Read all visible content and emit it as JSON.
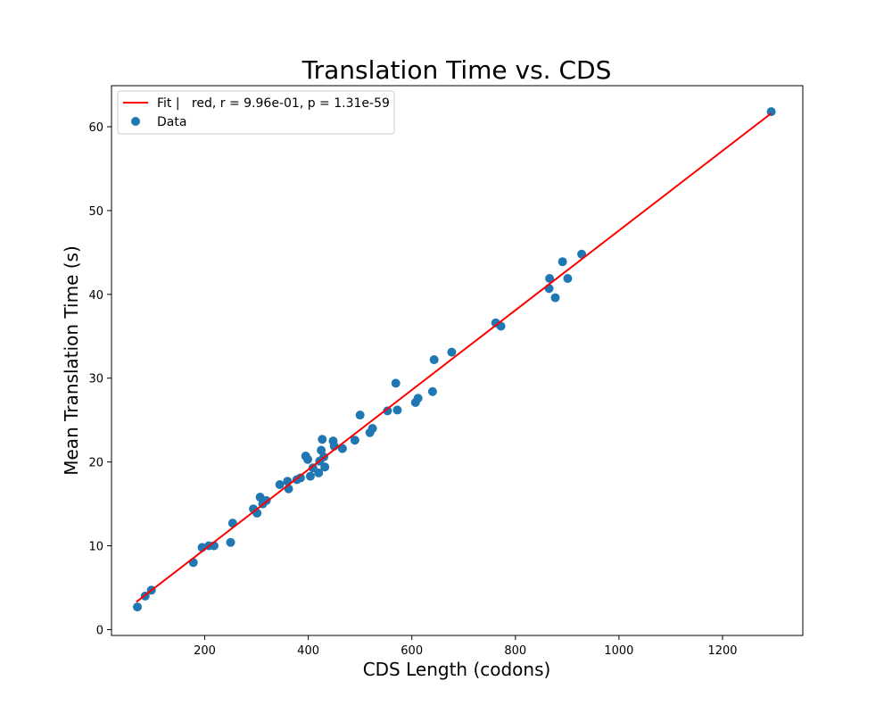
{
  "chart_data": {
    "type": "scatter",
    "title": "Translation Time vs. CDS",
    "xlabel": "CDS Length (codons)",
    "ylabel": "Mean Translation Time (s)",
    "xlim": [
      20,
      1355
    ],
    "ylim": [
      -0.7,
      64.9
    ],
    "xticks": [
      200,
      400,
      600,
      800,
      1000,
      1200
    ],
    "yticks": [
      0,
      10,
      20,
      30,
      40,
      50,
      60
    ],
    "grid": false,
    "legend_position": "top-left",
    "colors": {
      "fit": "#ff0000",
      "data": "#1f77b4"
    },
    "series": [
      {
        "name": "Fit |   red, r = 9.96e-01, p = 1.31e-59",
        "kind": "line",
        "x": [
          68,
          1294
        ],
        "y": [
          3.3,
          61.6
        ]
      },
      {
        "name": "Data",
        "kind": "scatter",
        "x": [
          70,
          85,
          97,
          178,
          195,
          208,
          218,
          250,
          254,
          294,
          301,
          307,
          312,
          319,
          345,
          360,
          362,
          378,
          385,
          395,
          399,
          404,
          409,
          420,
          422,
          425,
          427,
          430,
          432,
          448,
          450,
          466,
          490,
          500,
          519,
          524,
          553,
          569,
          572,
          607,
          612,
          640,
          643,
          677,
          762,
          772,
          865,
          866,
          877,
          891,
          901,
          928,
          1294
        ],
        "y": [
          2.7,
          4.0,
          4.7,
          8.0,
          9.8,
          10.0,
          10.0,
          10.4,
          12.7,
          14.4,
          13.9,
          15.8,
          15.0,
          15.4,
          17.3,
          17.7,
          16.8,
          17.9,
          18.1,
          20.7,
          20.3,
          18.3,
          19.3,
          18.7,
          20.1,
          21.4,
          22.7,
          20.6,
          19.4,
          22.5,
          21.9,
          21.6,
          22.6,
          25.6,
          23.5,
          24.0,
          26.1,
          29.4,
          26.2,
          27.1,
          27.6,
          28.4,
          32.2,
          33.1,
          36.6,
          36.2,
          40.7,
          41.9,
          39.6,
          43.9,
          41.9,
          44.8,
          61.8
        ]
      }
    ]
  }
}
